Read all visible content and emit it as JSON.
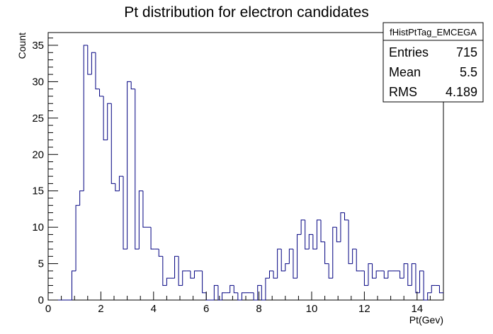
{
  "chart_data": {
    "type": "bar",
    "title": "Pt distribution for electron candidates",
    "xlabel": "Pt(Gev)",
    "ylabel": "Count",
    "xlim": [
      0,
      15
    ],
    "ylim": [
      0,
      36.75
    ],
    "xticks": [
      0,
      2,
      4,
      6,
      8,
      10,
      12,
      14
    ],
    "yticks": [
      0,
      5,
      10,
      15,
      20,
      25,
      30,
      35
    ],
    "bin_width": 0.15,
    "line_color": "#000080",
    "grid": false,
    "legend": "none",
    "x": [
      0,
      0.15,
      0.3,
      0.45,
      0.6,
      0.75,
      0.9,
      1.05,
      1.2,
      1.35,
      1.5,
      1.65,
      1.8,
      1.95,
      2.1,
      2.25,
      2.4,
      2.55,
      2.7,
      2.85,
      3.0,
      3.15,
      3.3,
      3.45,
      3.6,
      3.75,
      3.9,
      4.05,
      4.2,
      4.35,
      4.5,
      4.65,
      4.8,
      4.95,
      5.1,
      5.25,
      5.4,
      5.55,
      5.7,
      5.85,
      6.0,
      6.15,
      6.3,
      6.45,
      6.6,
      6.75,
      6.9,
      7.05,
      7.2,
      7.35,
      7.5,
      7.65,
      7.8,
      7.95,
      8.1,
      8.25,
      8.4,
      8.55,
      8.7,
      8.85,
      9.0,
      9.15,
      9.3,
      9.45,
      9.6,
      9.75,
      9.9,
      10.05,
      10.2,
      10.35,
      10.5,
      10.65,
      10.8,
      10.95,
      11.1,
      11.25,
      11.4,
      11.55,
      11.7,
      11.85,
      12.0,
      12.15,
      12.3,
      12.45,
      12.6,
      12.75,
      12.9,
      13.05,
      13.2,
      13.35,
      13.5,
      13.65,
      13.8,
      13.95,
      14.1,
      14.25,
      14.4,
      14.55,
      14.7,
      14.85
    ],
    "values": [
      0,
      0,
      0,
      0,
      0,
      0,
      4,
      13,
      15,
      35,
      31,
      34,
      29,
      28,
      22,
      27,
      16,
      15,
      17,
      7,
      30,
      29,
      7,
      15,
      10,
      10,
      7,
      7,
      6,
      2,
      3,
      3,
      6,
      2,
      4,
      4,
      3,
      4,
      4,
      1,
      0,
      0,
      2,
      0,
      1,
      1,
      2,
      1,
      0,
      1,
      1,
      1,
      0,
      2,
      0,
      3,
      4,
      3,
      7,
      4,
      5,
      7,
      3,
      9,
      11,
      7,
      9,
      7,
      11,
      8,
      5,
      3,
      10,
      8,
      12,
      11,
      5,
      7,
      4,
      4,
      2,
      5,
      3,
      4,
      4,
      3,
      4,
      4,
      4,
      3,
      5,
      2,
      5,
      1,
      4,
      0,
      1,
      2,
      2,
      1
    ]
  },
  "stats_box": {
    "name": "fHistPtTag_EMCEGA",
    "rows": [
      {
        "label": "Entries",
        "value": "715"
      },
      {
        "label": "Mean",
        "value": "5.5"
      },
      {
        "label": "RMS",
        "value": "4.189"
      }
    ]
  }
}
